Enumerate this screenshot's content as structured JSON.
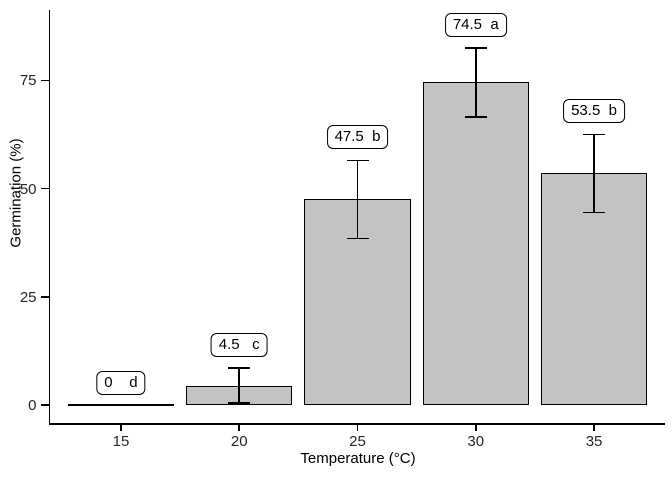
{
  "chart_data": {
    "type": "bar",
    "title": "",
    "xlabel": "Temperature (°C)",
    "ylabel": "Germination (%)",
    "categories": [
      "15",
      "20",
      "25",
      "30",
      "35"
    ],
    "values": [
      0,
      4.5,
      47.5,
      74.5,
      53.5
    ],
    "error_bars": [
      null,
      4,
      9,
      8,
      9
    ],
    "significance_letters": [
      "d",
      "c",
      "b",
      "a",
      "b"
    ],
    "bar_label_texts": [
      "0    d",
      "4.5   c",
      "47.5  b",
      "74.5  a",
      "53.5  b"
    ],
    "y_ticks": [
      0,
      25,
      50,
      75
    ],
    "ylim": [
      0,
      91
    ],
    "grid": false,
    "legend": "none",
    "colors": {
      "bar_fill": "#c3c3c3",
      "bar_border": "#000000",
      "axis": "#000000",
      "tick_text": "#262626",
      "background": "#ffffff"
    }
  }
}
